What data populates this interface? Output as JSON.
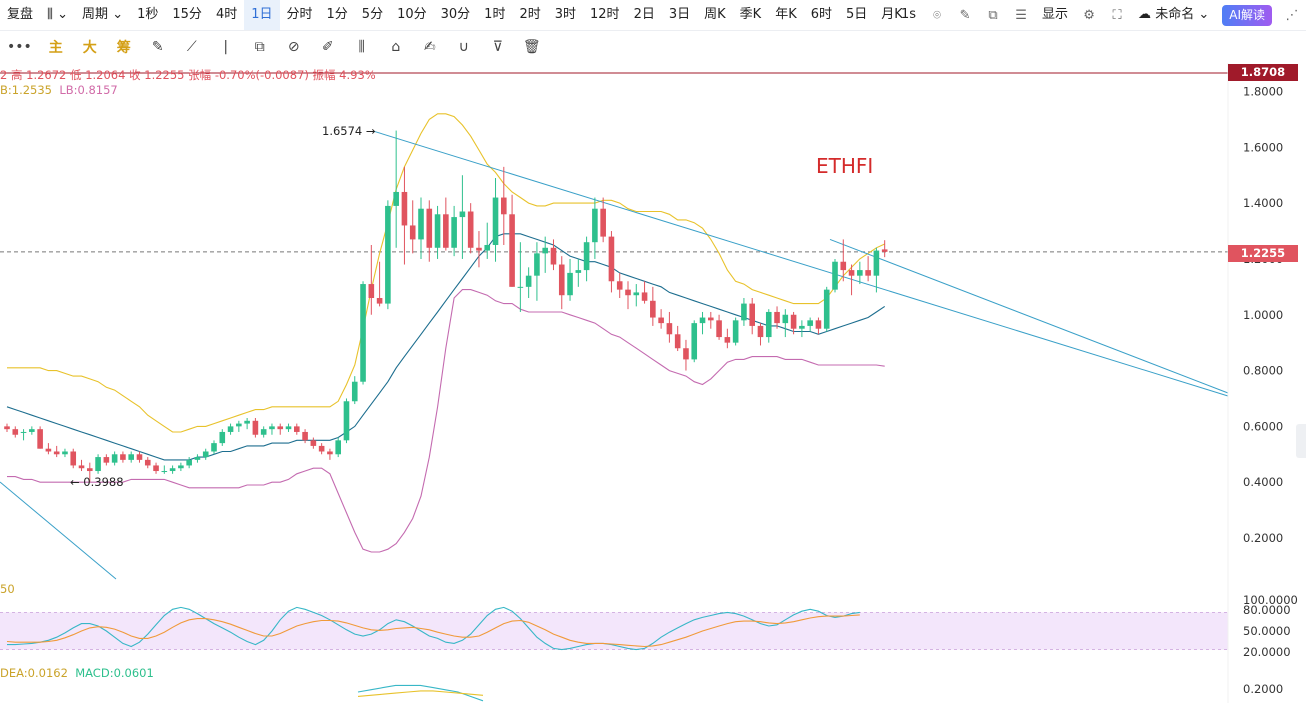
{
  "toolbar": {
    "replay_label": "复盘",
    "period_label": "周期",
    "intervals": [
      "1秒",
      "15分",
      "4时",
      "1日",
      "分时",
      "1分",
      "5分",
      "10分",
      "30分",
      "1时",
      "2时",
      "3时",
      "12时",
      "2日",
      "3日",
      "周K",
      "季K",
      "年K",
      "6时",
      "5日",
      "月K"
    ],
    "active_interval": "1日",
    "right_items": {
      "speed": "1s",
      "display": "显示",
      "layout_name": "未命名",
      "ai_label": "AI解读"
    }
  },
  "drawing_toolbar": {
    "more": "•••",
    "labels": [
      "主",
      "大",
      "筹"
    ]
  },
  "info": {
    "ohlc_prefix": "2",
    "high": "高 1.2672",
    "low": "低 1.2064",
    "close": "收 1.2255",
    "change": "张幅 -0.70%(-0.0087)",
    "amplitude": "振幅 4.93%",
    "boll_ub": "B:1.2535",
    "boll_lb": "LB:0.8157",
    "kdj_label": "50",
    "dea": "DEA:0.0162",
    "macd": "MACD:0.0601"
  },
  "price_tags": {
    "top": "1.8708",
    "last": "1.2255"
  },
  "colors": {
    "up": "#2ec08d",
    "down": "#e0545f",
    "mid": "#1d6e8f",
    "upper": "#e8c22b",
    "lower": "#c46bb0",
    "trend": "#3aa0c8",
    "top_line": "#a01a2a"
  },
  "chart_data": {
    "type": "candlestick",
    "title": "ETHFI",
    "ylim": [
      0.1,
      1.9
    ],
    "y_ticks": [
      "1.8000",
      "1.6000",
      "1.4000",
      "1.2000",
      "1.0000",
      "0.8000",
      "0.6000",
      "0.4000",
      "0.2000"
    ],
    "annotations": {
      "high_label": "1.6574",
      "low_label": "0.3988"
    },
    "candles": [
      [
        0.6,
        0.61,
        0.58,
        0.59
      ],
      [
        0.59,
        0.6,
        0.56,
        0.57
      ],
      [
        0.58,
        0.59,
        0.55,
        0.58
      ],
      [
        0.58,
        0.6,
        0.57,
        0.59
      ],
      [
        0.59,
        0.6,
        0.52,
        0.52
      ],
      [
        0.52,
        0.54,
        0.5,
        0.51
      ],
      [
        0.51,
        0.53,
        0.49,
        0.5
      ],
      [
        0.5,
        0.52,
        0.49,
        0.51
      ],
      [
        0.51,
        0.52,
        0.45,
        0.46
      ],
      [
        0.46,
        0.48,
        0.44,
        0.45
      ],
      [
        0.45,
        0.47,
        0.4,
        0.44
      ],
      [
        0.44,
        0.5,
        0.43,
        0.49
      ],
      [
        0.49,
        0.5,
        0.46,
        0.47
      ],
      [
        0.47,
        0.51,
        0.46,
        0.5
      ],
      [
        0.5,
        0.51,
        0.47,
        0.48
      ],
      [
        0.48,
        0.51,
        0.47,
        0.5
      ],
      [
        0.5,
        0.51,
        0.47,
        0.48
      ],
      [
        0.48,
        0.49,
        0.45,
        0.46
      ],
      [
        0.46,
        0.47,
        0.43,
        0.44
      ],
      [
        0.44,
        0.46,
        0.43,
        0.44
      ],
      [
        0.44,
        0.46,
        0.43,
        0.45
      ],
      [
        0.45,
        0.47,
        0.44,
        0.46
      ],
      [
        0.46,
        0.49,
        0.45,
        0.48
      ],
      [
        0.48,
        0.5,
        0.47,
        0.49
      ],
      [
        0.49,
        0.52,
        0.48,
        0.51
      ],
      [
        0.51,
        0.55,
        0.5,
        0.54
      ],
      [
        0.54,
        0.59,
        0.53,
        0.58
      ],
      [
        0.58,
        0.61,
        0.57,
        0.6
      ],
      [
        0.6,
        0.62,
        0.58,
        0.61
      ],
      [
        0.61,
        0.63,
        0.59,
        0.62
      ],
      [
        0.62,
        0.63,
        0.56,
        0.57
      ],
      [
        0.57,
        0.6,
        0.56,
        0.59
      ],
      [
        0.59,
        0.61,
        0.57,
        0.6
      ],
      [
        0.6,
        0.61,
        0.57,
        0.59
      ],
      [
        0.59,
        0.61,
        0.58,
        0.6
      ],
      [
        0.6,
        0.61,
        0.57,
        0.58
      ],
      [
        0.58,
        0.59,
        0.54,
        0.55
      ],
      [
        0.55,
        0.56,
        0.52,
        0.53
      ],
      [
        0.53,
        0.54,
        0.5,
        0.51
      ],
      [
        0.51,
        0.52,
        0.48,
        0.5
      ],
      [
        0.5,
        0.56,
        0.49,
        0.55
      ],
      [
        0.55,
        0.7,
        0.54,
        0.69
      ],
      [
        0.69,
        0.78,
        0.68,
        0.76
      ],
      [
        0.76,
        1.12,
        0.75,
        1.11
      ],
      [
        1.11,
        1.25,
        1.0,
        1.06
      ],
      [
        1.06,
        1.19,
        1.03,
        1.04
      ],
      [
        1.04,
        1.41,
        1.02,
        1.39
      ],
      [
        1.39,
        1.66,
        1.24,
        1.44
      ],
      [
        1.44,
        1.53,
        1.18,
        1.32
      ],
      [
        1.32,
        1.41,
        1.22,
        1.27
      ],
      [
        1.27,
        1.42,
        1.2,
        1.38
      ],
      [
        1.38,
        1.41,
        1.19,
        1.24
      ],
      [
        1.24,
        1.39,
        1.2,
        1.36
      ],
      [
        1.36,
        1.42,
        1.23,
        1.24
      ],
      [
        1.24,
        1.39,
        1.21,
        1.35
      ],
      [
        1.35,
        1.5,
        1.2,
        1.37
      ],
      [
        1.37,
        1.4,
        1.22,
        1.24
      ],
      [
        1.24,
        1.3,
        1.17,
        1.23
      ],
      [
        1.23,
        1.33,
        1.2,
        1.25
      ],
      [
        1.25,
        1.49,
        1.19,
        1.42
      ],
      [
        1.42,
        1.53,
        1.25,
        1.36
      ],
      [
        1.36,
        1.43,
        1.1,
        1.1
      ],
      [
        1.1,
        1.26,
        1.01,
        1.1
      ],
      [
        1.1,
        1.17,
        1.06,
        1.14
      ],
      [
        1.14,
        1.26,
        1.05,
        1.22
      ],
      [
        1.22,
        1.28,
        1.15,
        1.24
      ],
      [
        1.24,
        1.27,
        1.16,
        1.18
      ],
      [
        1.18,
        1.21,
        1.02,
        1.07
      ],
      [
        1.07,
        1.2,
        1.05,
        1.15
      ],
      [
        1.15,
        1.2,
        1.1,
        1.16
      ],
      [
        1.16,
        1.28,
        1.12,
        1.26
      ],
      [
        1.26,
        1.42,
        1.2,
        1.38
      ],
      [
        1.38,
        1.42,
        1.26,
        1.28
      ],
      [
        1.28,
        1.3,
        1.08,
        1.12
      ],
      [
        1.12,
        1.15,
        1.06,
        1.09
      ],
      [
        1.09,
        1.12,
        1.02,
        1.07
      ],
      [
        1.07,
        1.11,
        1.03,
        1.08
      ],
      [
        1.08,
        1.12,
        1.04,
        1.05
      ],
      [
        1.05,
        1.1,
        0.96,
        0.99
      ],
      [
        0.99,
        1.02,
        0.95,
        0.97
      ],
      [
        0.97,
        1.01,
        0.9,
        0.93
      ],
      [
        0.93,
        0.96,
        0.87,
        0.88
      ],
      [
        0.88,
        0.91,
        0.8,
        0.84
      ],
      [
        0.84,
        0.98,
        0.83,
        0.97
      ],
      [
        0.97,
        1.01,
        0.93,
        0.99
      ],
      [
        0.99,
        1.01,
        0.95,
        0.98
      ],
      [
        0.98,
        1.0,
        0.91,
        0.92
      ],
      [
        0.92,
        0.95,
        0.88,
        0.9
      ],
      [
        0.9,
        0.99,
        0.89,
        0.98
      ],
      [
        0.98,
        1.06,
        0.96,
        1.04
      ],
      [
        1.04,
        1.06,
        0.93,
        0.96
      ],
      [
        0.96,
        0.97,
        0.89,
        0.92
      ],
      [
        0.92,
        1.02,
        0.9,
        1.01
      ],
      [
        1.01,
        1.03,
        0.95,
        0.97
      ],
      [
        0.97,
        1.02,
        0.92,
        1.0
      ],
      [
        1.0,
        1.01,
        0.93,
        0.95
      ],
      [
        0.95,
        0.98,
        0.92,
        0.96
      ],
      [
        0.96,
        0.99,
        0.94,
        0.98
      ],
      [
        0.98,
        0.99,
        0.93,
        0.95
      ],
      [
        0.95,
        1.1,
        0.94,
        1.09
      ],
      [
        1.09,
        1.2,
        1.08,
        1.19
      ],
      [
        1.19,
        1.27,
        1.12,
        1.16
      ],
      [
        1.16,
        1.18,
        1.07,
        1.14
      ],
      [
        1.14,
        1.19,
        1.11,
        1.16
      ],
      [
        1.16,
        1.21,
        1.12,
        1.14
      ],
      [
        1.14,
        1.24,
        1.08,
        1.23
      ],
      [
        1.2342,
        1.2672,
        1.2064,
        1.2255
      ]
    ],
    "boll_mid": [
      0.67,
      0.66,
      0.65,
      0.64,
      0.63,
      0.62,
      0.61,
      0.6,
      0.59,
      0.58,
      0.57,
      0.56,
      0.55,
      0.54,
      0.53,
      0.52,
      0.51,
      0.5,
      0.49,
      0.48,
      0.48,
      0.48,
      0.48,
      0.49,
      0.49,
      0.5,
      0.51,
      0.51,
      0.52,
      0.53,
      0.53,
      0.53,
      0.54,
      0.54,
      0.54,
      0.55,
      0.55,
      0.55,
      0.55,
      0.55,
      0.56,
      0.58,
      0.6,
      0.64,
      0.68,
      0.72,
      0.76,
      0.81,
      0.85,
      0.89,
      0.93,
      0.97,
      1.01,
      1.05,
      1.09,
      1.13,
      1.17,
      1.21,
      1.24,
      1.28,
      1.29,
      1.29,
      1.29,
      1.28,
      1.27,
      1.26,
      1.25,
      1.23,
      1.21,
      1.2,
      1.19,
      1.19,
      1.18,
      1.17,
      1.15,
      1.14,
      1.13,
      1.12,
      1.11,
      1.1,
      1.08,
      1.07,
      1.06,
      1.05,
      1.04,
      1.03,
      1.02,
      1.01,
      1.0,
      0.99,
      0.98,
      0.97,
      0.96,
      0.96,
      0.95,
      0.94,
      0.94,
      0.94,
      0.93,
      0.94,
      0.95,
      0.96,
      0.97,
      0.98,
      0.99,
      1.01,
      1.03
    ],
    "boll_upper": [
      0.81,
      0.81,
      0.81,
      0.81,
      0.81,
      0.8,
      0.8,
      0.79,
      0.78,
      0.78,
      0.77,
      0.76,
      0.74,
      0.73,
      0.71,
      0.69,
      0.67,
      0.64,
      0.62,
      0.6,
      0.58,
      0.58,
      0.59,
      0.6,
      0.6,
      0.61,
      0.62,
      0.63,
      0.64,
      0.65,
      0.66,
      0.66,
      0.67,
      0.67,
      0.67,
      0.67,
      0.67,
      0.67,
      0.67,
      0.67,
      0.69,
      0.75,
      0.82,
      0.95,
      1.09,
      1.22,
      1.33,
      1.45,
      1.53,
      1.59,
      1.65,
      1.7,
      1.72,
      1.72,
      1.71,
      1.68,
      1.64,
      1.59,
      1.54,
      1.51,
      1.47,
      1.44,
      1.42,
      1.4,
      1.39,
      1.39,
      1.4,
      1.4,
      1.4,
      1.4,
      1.4,
      1.4,
      1.41,
      1.41,
      1.4,
      1.38,
      1.37,
      1.37,
      1.37,
      1.37,
      1.36,
      1.34,
      1.34,
      1.33,
      1.31,
      1.27,
      1.22,
      1.16,
      1.12,
      1.11,
      1.09,
      1.08,
      1.07,
      1.06,
      1.05,
      1.04,
      1.04,
      1.04,
      1.04,
      1.06,
      1.1,
      1.14,
      1.17,
      1.2,
      1.22,
      1.24,
      1.2535
    ],
    "boll_lower": [
      0.42,
      0.42,
      0.41,
      0.41,
      0.4,
      0.4,
      0.4,
      0.4,
      0.4,
      0.4,
      0.4,
      0.4,
      0.4,
      0.4,
      0.4,
      0.41,
      0.41,
      0.41,
      0.41,
      0.41,
      0.4,
      0.39,
      0.38,
      0.38,
      0.38,
      0.38,
      0.38,
      0.38,
      0.38,
      0.39,
      0.39,
      0.39,
      0.4,
      0.4,
      0.41,
      0.43,
      0.44,
      0.45,
      0.45,
      0.43,
      0.36,
      0.29,
      0.22,
      0.16,
      0.15,
      0.15,
      0.16,
      0.18,
      0.22,
      0.27,
      0.35,
      0.49,
      0.67,
      0.88,
      1.06,
      1.09,
      1.09,
      1.08,
      1.07,
      1.05,
      1.04,
      1.04,
      1.02,
      1.01,
      1.01,
      1.01,
      1.01,
      1.01,
      1.0,
      0.99,
      0.98,
      0.97,
      0.95,
      0.93,
      0.92,
      0.9,
      0.88,
      0.86,
      0.84,
      0.82,
      0.8,
      0.79,
      0.78,
      0.76,
      0.75,
      0.77,
      0.8,
      0.83,
      0.84,
      0.84,
      0.85,
      0.85,
      0.85,
      0.85,
      0.84,
      0.84,
      0.84,
      0.83,
      0.82,
      0.82,
      0.82,
      0.82,
      0.82,
      0.82,
      0.82,
      0.82,
      0.8157
    ],
    "kdj_k": [
      28,
      28,
      29,
      30,
      32,
      35,
      40,
      47,
      55,
      62,
      62,
      58,
      50,
      40,
      30,
      25,
      32,
      45,
      60,
      75,
      85,
      88,
      85,
      78,
      70,
      62,
      55,
      48,
      40,
      33,
      28,
      35,
      50,
      68,
      82,
      88,
      85,
      80,
      75,
      68,
      60,
      52,
      45,
      42,
      45,
      52,
      62,
      68,
      65,
      58,
      50,
      42,
      38,
      32,
      30,
      35,
      45,
      60,
      75,
      85,
      88,
      82,
      70,
      55,
      40,
      30,
      22,
      20,
      22,
      25,
      28,
      30,
      30,
      28,
      25,
      22,
      20,
      22,
      30,
      40,
      48,
      55,
      62,
      68,
      72,
      75,
      78,
      80,
      78,
      74,
      68,
      62,
      58,
      60,
      68,
      76,
      82,
      85,
      82,
      75,
      72,
      74,
      78,
      80
    ],
    "kdj_d": [
      33,
      32,
      32,
      32,
      32,
      33,
      35,
      39,
      44,
      50,
      55,
      57,
      56,
      53,
      48,
      42,
      38,
      38,
      42,
      48,
      56,
      63,
      68,
      70,
      70,
      68,
      65,
      61,
      56,
      51,
      46,
      42,
      42,
      46,
      52,
      58,
      62,
      65,
      67,
      67,
      66,
      63,
      59,
      55,
      52,
      51,
      52,
      54,
      55,
      56,
      54,
      52,
      48,
      45,
      42,
      40,
      40,
      42,
      48,
      55,
      62,
      66,
      67,
      64,
      58,
      52,
      45,
      40,
      35,
      32,
      30,
      30,
      30,
      29,
      28,
      27,
      26,
      25,
      26,
      28,
      32,
      36,
      40,
      45,
      50,
      54,
      58,
      62,
      65,
      66,
      66,
      65,
      63,
      62,
      63,
      65,
      68,
      71,
      73,
      74,
      74,
      74,
      75,
      76
    ],
    "macd_dif": [
      0.1,
      0.11,
      0.12,
      0.13,
      0.13,
      0.13,
      0.12,
      0.11,
      0.1,
      0.08,
      0.06
    ],
    "macd_dea": [
      0.08,
      0.085,
      0.09,
      0.095,
      0.1,
      0.105,
      0.105,
      0.1,
      0.095,
      0.09,
      0.085
    ]
  }
}
